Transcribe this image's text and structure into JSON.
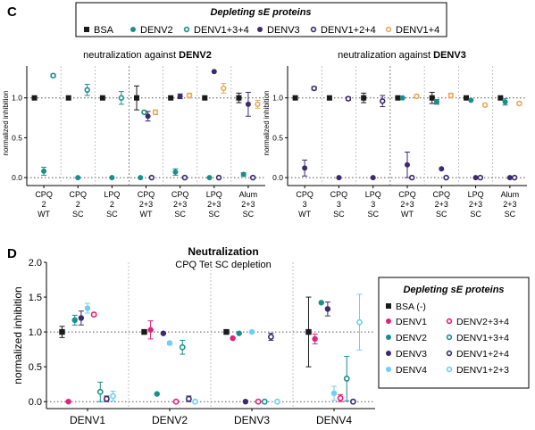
{
  "colors": {
    "BSA": "#1a1a1a",
    "DENV1": "#e0237a",
    "DENV2": "#1a8f8a",
    "DENV3": "#3b2a6e",
    "DENV4": "#6ccff6",
    "DENV1+3+4": "#1a8f8a",
    "DENV1+2+4": "#3b2a6e",
    "DENV1+4": "#e8a85c",
    "DENV2+3+4": "#e0237a",
    "DENV1+2+3": "#6ccff6",
    "gridline": "#555555",
    "separator": "#aaaaaa"
  },
  "panel_c": {
    "letter": "C",
    "legend": {
      "title": "Depleting sE proteins",
      "entries": [
        {
          "label": "BSA",
          "marker": "square-filled",
          "key": "BSA"
        },
        {
          "label": "DENV2",
          "marker": "circle-filled",
          "key": "DENV2"
        },
        {
          "label": "DENV1+3+4",
          "marker": "circle-open",
          "key": "DENV1+3+4"
        },
        {
          "label": "DENV3",
          "marker": "circle-filled",
          "key": "DENV3"
        },
        {
          "label": "DENV1+2+4",
          "marker": "circle-open",
          "key": "DENV1+2+4"
        },
        {
          "label": "DENV1+4",
          "marker": "circle-open",
          "key": "DENV1+4"
        }
      ]
    },
    "ylabel": "normalized inhibition",
    "yticks": [
      "1.0",
      "0.5",
      "0.0"
    ]
  },
  "panel_d": {
    "letter": "D",
    "title": "Neutralization",
    "subtitle": "CPQ Tet SC depletion",
    "ylabel": "normalized inhibition",
    "yticks": [
      "2.0",
      "1.5",
      "1.0",
      "0.5",
      "0.0"
    ],
    "legend": {
      "title": "Depleting sE proteins",
      "entries": [
        {
          "label": "BSA (-)",
          "marker": "square-filled",
          "key": "BSA"
        },
        {
          "label": "DENV1",
          "marker": "circle-filled",
          "key": "DENV1"
        },
        {
          "label": "DENV2+3+4",
          "marker": "circle-open",
          "key": "DENV2+3+4"
        },
        {
          "label": "DENV2",
          "marker": "circle-filled",
          "key": "DENV2"
        },
        {
          "label": "DENV1+3+4",
          "marker": "circle-open",
          "key": "DENV1+3+4"
        },
        {
          "label": "DENV3",
          "marker": "circle-filled",
          "key": "DENV3"
        },
        {
          "label": "DENV1+2+4",
          "marker": "circle-open",
          "key": "DENV1+2+4"
        },
        {
          "label": "DENV4",
          "marker": "circle-filled",
          "key": "DENV4"
        },
        {
          "label": "DENV1+2+3",
          "marker": "circle-open",
          "key": "DENV1+2+3"
        }
      ]
    }
  },
  "chart_data": [
    {
      "type": "scatter",
      "title": "neutralization against DENV2",
      "title_prefix": "neutralization against ",
      "title_bold": "DENV2",
      "ylabel": "normalized inhibition",
      "ylim": [
        -0.1,
        1.4
      ],
      "reference_lines": [
        0,
        1
      ],
      "groups": [
        {
          "label": [
            "CPQ",
            "2",
            "WT"
          ],
          "points": [
            {
              "key": "BSA",
              "y": 1.0,
              "err": 0
            },
            {
              "key": "DENV2",
              "y": 0.08,
              "err": 0.05
            },
            {
              "key": "DENV1+3+4",
              "y": 1.28,
              "err": 0.02
            }
          ]
        },
        {
          "label": [
            "CPQ",
            "2",
            "SC"
          ],
          "points": [
            {
              "key": "BSA",
              "y": 1.0,
              "err": 0
            },
            {
              "key": "DENV2",
              "y": 0.0,
              "err": 0
            },
            {
              "key": "DENV1+3+4",
              "y": 1.1,
              "err": 0.07
            }
          ]
        },
        {
          "label": [
            "LPQ",
            "2",
            "SC"
          ],
          "points": [
            {
              "key": "BSA",
              "y": 1.0,
              "err": 0
            },
            {
              "key": "DENV2",
              "y": 0.0,
              "err": 0
            },
            {
              "key": "DENV1+3+4",
              "y": 1.0,
              "err": 0.08
            }
          ]
        },
        {
          "label": [
            "CPQ",
            "2+3",
            "WT"
          ],
          "points": [
            {
              "key": "BSA",
              "y": 1.0,
              "err": 0.15
            },
            {
              "key": "DENV2",
              "y": 0.0,
              "err": 0
            },
            {
              "key": "DENV1+3+4",
              "y": 0.82,
              "err": 0
            },
            {
              "key": "DENV3",
              "y": 0.77,
              "err": 0.06
            },
            {
              "key": "DENV1+2+4",
              "y": 0.0,
              "err": 0
            },
            {
              "key": "DENV1+4",
              "y": 0.82,
              "err": 0.03
            }
          ]
        },
        {
          "label": [
            "CPQ",
            "2+3",
            "SC"
          ],
          "points": [
            {
              "key": "BSA",
              "y": 1.0,
              "err": 0
            },
            {
              "key": "DENV2",
              "y": 0.07,
              "err": 0.04
            },
            {
              "key": "DENV3",
              "y": 1.02,
              "err": 0.03
            },
            {
              "key": "DENV1+2+4",
              "y": 0.0,
              "err": 0
            },
            {
              "key": "DENV1+4",
              "y": 1.03,
              "err": 0.03
            }
          ]
        },
        {
          "label": [
            "LPQ",
            "2+3",
            "SC"
          ],
          "points": [
            {
              "key": "BSA",
              "y": 1.0,
              "err": 0
            },
            {
              "key": "DENV2",
              "y": 0.0,
              "err": 0
            },
            {
              "key": "DENV3",
              "y": 1.33,
              "err": 0
            },
            {
              "key": "DENV1+2+4",
              "y": 0.0,
              "err": 0
            },
            {
              "key": "DENV1+4",
              "y": 1.12,
              "err": 0.06
            }
          ]
        },
        {
          "label": [
            "Alum",
            "2+3",
            "SC"
          ],
          "points": [
            {
              "key": "BSA",
              "y": 1.0,
              "err": 0.06
            },
            {
              "key": "DENV2",
              "y": 0.04,
              "err": 0.02
            },
            {
              "key": "DENV3",
              "y": 0.92,
              "err": 0.15
            },
            {
              "key": "DENV1+2+4",
              "y": 0.0,
              "err": 0
            },
            {
              "key": "DENV1+4",
              "y": 0.92,
              "err": 0.05
            }
          ]
        }
      ]
    },
    {
      "type": "scatter",
      "title": "neutralization against DENV3",
      "title_prefix": "neutralization against ",
      "title_bold": "DENV3",
      "ylabel": "normalized inhibition",
      "ylim": [
        -0.1,
        1.4
      ],
      "reference_lines": [
        0,
        1
      ],
      "groups": [
        {
          "label": [
            "CPQ",
            "3",
            "WT"
          ],
          "points": [
            {
              "key": "BSA",
              "y": 1.0,
              "err": 0
            },
            {
              "key": "DENV3",
              "y": 0.12,
              "err": 0.1
            },
            {
              "key": "DENV1+2+4",
              "y": 1.12,
              "err": 0.02
            }
          ]
        },
        {
          "label": [
            "CPQ",
            "3",
            "SC"
          ],
          "points": [
            {
              "key": "BSA",
              "y": 1.0,
              "err": 0
            },
            {
              "key": "DENV3",
              "y": 0.0,
              "err": 0
            },
            {
              "key": "DENV1+2+4",
              "y": 0.99,
              "err": 0.02
            }
          ]
        },
        {
          "label": [
            "LPQ",
            "3",
            "SC"
          ],
          "points": [
            {
              "key": "BSA",
              "y": 1.0,
              "err": 0.06
            },
            {
              "key": "DENV3",
              "y": 0.0,
              "err": 0
            },
            {
              "key": "DENV1+2+4",
              "y": 0.96,
              "err": 0.07
            }
          ]
        },
        {
          "label": [
            "CPQ",
            "2+3",
            "WT"
          ],
          "points": [
            {
              "key": "BSA",
              "y": 1.0,
              "err": 0
            },
            {
              "key": "DENV2",
              "y": 1.0,
              "err": 0
            },
            {
              "key": "DENV3",
              "y": 0.16,
              "err": 0.16
            },
            {
              "key": "DENV1+2+4",
              "y": 0.0,
              "err": 0
            },
            {
              "key": "DENV1+4",
              "y": 1.02,
              "err": 0.02
            }
          ]
        },
        {
          "label": [
            "CPQ",
            "2+3",
            "SC"
          ],
          "points": [
            {
              "key": "BSA",
              "y": 1.0,
              "err": 0.07
            },
            {
              "key": "DENV2",
              "y": 0.95,
              "err": 0.03
            },
            {
              "key": "DENV3",
              "y": 0.11,
              "err": 0
            },
            {
              "key": "DENV1+2+4",
              "y": 0.0,
              "err": 0
            },
            {
              "key": "DENV1+4",
              "y": 1.03,
              "err": 0.03
            }
          ]
        },
        {
          "label": [
            "LPQ",
            "2+3",
            "SC"
          ],
          "points": [
            {
              "key": "BSA",
              "y": 1.0,
              "err": 0
            },
            {
              "key": "DENV2",
              "y": 0.97,
              "err": 0
            },
            {
              "key": "DENV3",
              "y": 0.0,
              "err": 0
            },
            {
              "key": "DENV1+2+4",
              "y": 0.0,
              "err": 0
            },
            {
              "key": "DENV1+4",
              "y": 0.91,
              "err": 0.02
            }
          ]
        },
        {
          "label": [
            "Alum",
            "2+3",
            "SC"
          ],
          "points": [
            {
              "key": "BSA",
              "y": 1.0,
              "err": 0
            },
            {
              "key": "DENV2",
              "y": 0.95,
              "err": 0.04
            },
            {
              "key": "DENV3",
              "y": 0.0,
              "err": 0
            },
            {
              "key": "DENV1+2+4",
              "y": 0.0,
              "err": 0
            },
            {
              "key": "DENV1+4",
              "y": 0.93,
              "err": 0.02
            }
          ]
        }
      ]
    },
    {
      "type": "scatter",
      "title": "Neutralization",
      "subtitle": "CPQ Tet SC depletion",
      "ylabel": "normalized inhibition",
      "ylim": [
        -0.1,
        2.0
      ],
      "reference_lines": [
        0,
        1
      ],
      "categories": [
        "DENV1",
        "DENV2",
        "DENV3",
        "DENV4"
      ],
      "groups": [
        {
          "label": [
            "DENV1"
          ],
          "points": [
            {
              "key": "BSA",
              "y": 1.0,
              "err": 0.08
            },
            {
              "key": "DENV1",
              "y": 0.0,
              "err": 0
            },
            {
              "key": "DENV2",
              "y": 1.17,
              "err": 0.07
            },
            {
              "key": "DENV3",
              "y": 1.2,
              "err": 0.1
            },
            {
              "key": "DENV4",
              "y": 1.34,
              "err": 0.07
            },
            {
              "key": "DENV2+3+4",
              "y": 1.25,
              "err": 0.02
            },
            {
              "key": "DENV1+3+4",
              "y": 0.14,
              "err": 0.14
            },
            {
              "key": "DENV1+2+4",
              "y": 0.04,
              "err": 0.04
            },
            {
              "key": "DENV1+2+3",
              "y": 0.08,
              "err": 0.07
            }
          ]
        },
        {
          "label": [
            "DENV2"
          ],
          "points": [
            {
              "key": "BSA",
              "y": 1.0,
              "err": 0
            },
            {
              "key": "DENV1",
              "y": 1.03,
              "err": 0.13
            },
            {
              "key": "DENV2",
              "y": 0.11,
              "err": 0
            },
            {
              "key": "DENV3",
              "y": 0.98,
              "err": 0
            },
            {
              "key": "DENV4",
              "y": 0.84,
              "err": 0.02
            },
            {
              "key": "DENV2+3+4",
              "y": 0.0,
              "err": 0
            },
            {
              "key": "DENV1+3+4",
              "y": 0.78,
              "err": 0.1
            },
            {
              "key": "DENV1+2+4",
              "y": 0.04,
              "err": 0.04
            },
            {
              "key": "DENV1+2+3",
              "y": 0.0,
              "err": 0
            }
          ]
        },
        {
          "label": [
            "DENV3"
          ],
          "points": [
            {
              "key": "BSA",
              "y": 1.0,
              "err": 0
            },
            {
              "key": "DENV1",
              "y": 0.91,
              "err": 0
            },
            {
              "key": "DENV2",
              "y": 0.98,
              "err": 0
            },
            {
              "key": "DENV3",
              "y": 0.0,
              "err": 0
            },
            {
              "key": "DENV4",
              "y": 1.0,
              "err": 0
            },
            {
              "key": "DENV2+3+4",
              "y": 0.0,
              "err": 0
            },
            {
              "key": "DENV1+3+4",
              "y": 0.0,
              "err": 0
            },
            {
              "key": "DENV1+2+4",
              "y": 0.93,
              "err": 0.05
            },
            {
              "key": "DENV1+2+3",
              "y": 0.0,
              "err": 0
            }
          ]
        },
        {
          "label": [
            "DENV4"
          ],
          "points": [
            {
              "key": "BSA",
              "y": 1.0,
              "err": 0.5
            },
            {
              "key": "DENV1",
              "y": 0.9,
              "err": 0.07
            },
            {
              "key": "DENV2",
              "y": 1.42,
              "err": 0
            },
            {
              "key": "DENV3",
              "y": 1.33,
              "err": 0.1
            },
            {
              "key": "DENV4",
              "y": 0.12,
              "err": 0.1
            },
            {
              "key": "DENV2+3+4",
              "y": 0.05,
              "err": 0.05
            },
            {
              "key": "DENV1+3+4",
              "y": 0.33,
              "err": 0.32
            },
            {
              "key": "DENV1+2+4",
              "y": 0.0,
              "err": 0
            },
            {
              "key": "DENV1+2+3",
              "y": 1.14,
              "err": 0.4
            }
          ]
        }
      ]
    }
  ]
}
